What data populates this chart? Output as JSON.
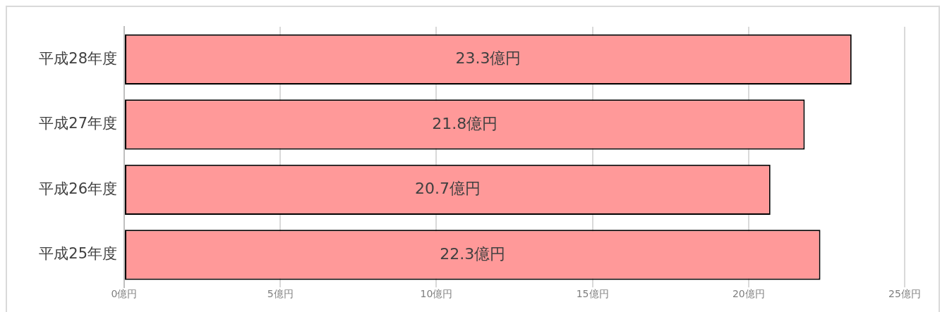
{
  "chart_data": {
    "type": "bar",
    "orientation": "horizontal",
    "categories": [
      "平成28年度",
      "平成27年度",
      "平成26年度",
      "平成25年度"
    ],
    "values": [
      23.3,
      21.8,
      20.7,
      22.3
    ],
    "value_labels": [
      "23.3億円",
      "21.8億円",
      "20.7億円",
      "22.3億円"
    ],
    "color": "#ff9999",
    "xlim": [
      0,
      25
    ],
    "xticks": [
      {
        "value": 0,
        "label": "0億円"
      },
      {
        "value": 5,
        "label": "5億円"
      },
      {
        "value": 10,
        "label": "10億円"
      },
      {
        "value": 15,
        "label": "15億円"
      },
      {
        "value": 20,
        "label": "20億円"
      },
      {
        "value": 25,
        "label": "25億円"
      }
    ],
    "grid": "x",
    "legend": false
  }
}
